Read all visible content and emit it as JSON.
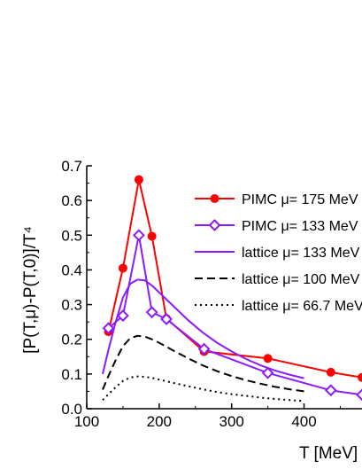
{
  "chart_data": {
    "type": "line",
    "xlabel": "T [MeV]",
    "ylabel": "[P(T,μ)-P(T,0)]/T⁴",
    "xlim": [
      100,
      480
    ],
    "ylim": [
      0.0,
      0.7
    ],
    "x_ticks": [
      "100",
      "200",
      "300",
      "400"
    ],
    "y_ticks": [
      "0.0",
      "0.1",
      "0.2",
      "0.3",
      "0.4",
      "0.5",
      "0.6",
      "0.7"
    ],
    "grid": false,
    "legend_position": "top-right",
    "series": [
      {
        "name": "PIMC  μ= 175 MeV",
        "color": "#ff0000",
        "style": "solid-filled-circles",
        "x": [
          130,
          150,
          172,
          190,
          210,
          262,
          350,
          437,
          480
        ],
        "y": [
          0.222,
          0.405,
          0.66,
          0.497,
          0.26,
          0.165,
          0.145,
          0.105,
          0.09
        ]
      },
      {
        "name": "PIMC  μ= 133 MeV",
        "color": "#8b1aff",
        "style": "solid-open-diamonds",
        "x": [
          130,
          150,
          172,
          190,
          210,
          262,
          350,
          437,
          480
        ],
        "y": [
          0.232,
          0.268,
          0.5,
          0.278,
          0.258,
          0.172,
          0.103,
          0.053,
          0.04
        ]
      },
      {
        "name": "lattice  μ= 133 MeV",
        "color": "#8b1aff",
        "style": "solid",
        "x": [
          122,
          130,
          140,
          150,
          160,
          170,
          180,
          190,
          200,
          220,
          240,
          260,
          280,
          300,
          320,
          340,
          360,
          380,
          400
        ],
        "y": [
          0.1,
          0.17,
          0.25,
          0.32,
          0.36,
          0.372,
          0.37,
          0.355,
          0.335,
          0.295,
          0.255,
          0.22,
          0.19,
          0.165,
          0.143,
          0.125,
          0.11,
          0.098,
          0.088
        ]
      },
      {
        "name": "lattice  μ= 100 MeV",
        "color": "#000000",
        "style": "dashed",
        "x": [
          122,
          130,
          140,
          150,
          160,
          170,
          180,
          190,
          200,
          220,
          240,
          260,
          280,
          300,
          320,
          340,
          360,
          380,
          400
        ],
        "y": [
          0.055,
          0.095,
          0.14,
          0.18,
          0.203,
          0.21,
          0.208,
          0.2,
          0.19,
          0.167,
          0.145,
          0.125,
          0.108,
          0.094,
          0.082,
          0.072,
          0.063,
          0.056,
          0.05
        ]
      },
      {
        "name": "lattice  μ= 66.7 MeV",
        "color": "#000000",
        "style": "dotted",
        "x": [
          122,
          130,
          140,
          150,
          160,
          170,
          180,
          190,
          200,
          220,
          240,
          260,
          280,
          300,
          320,
          340,
          360,
          380,
          400
        ],
        "y": [
          0.025,
          0.042,
          0.062,
          0.08,
          0.09,
          0.093,
          0.092,
          0.089,
          0.084,
          0.074,
          0.065,
          0.056,
          0.048,
          0.042,
          0.037,
          0.032,
          0.028,
          0.025,
          0.022
        ]
      }
    ]
  }
}
